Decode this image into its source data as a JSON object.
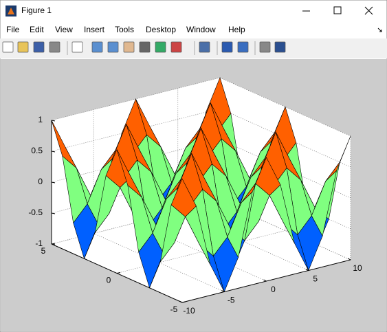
{
  "window": {
    "title": "Figure 1",
    "menu": [
      "File",
      "Edit",
      "View",
      "Insert",
      "Tools",
      "Desktop",
      "Window",
      "Help"
    ]
  },
  "chart_data": {
    "type": "surface",
    "colormap": "jet",
    "grid": true,
    "x": [
      -10,
      -8.333,
      -6.667,
      -5,
      -3.333,
      -1.667,
      0,
      1.667,
      3.333,
      5,
      6.667,
      8.333,
      10
    ],
    "y": [
      -5,
      -4.167,
      -3.333,
      -2.5,
      -1.667,
      -0.833,
      0,
      0.833,
      1.667,
      2.5,
      3.333,
      4.167,
      5
    ],
    "z": [
      [
        1,
        0.5,
        -0.5,
        -1,
        -0.5,
        0.5,
        1,
        0.5,
        -0.5,
        -1,
        -0.5,
        0.5,
        1
      ],
      [
        0.5,
        0.25,
        -0.25,
        -0.5,
        -0.25,
        0.25,
        0.5,
        0.25,
        -0.25,
        -0.5,
        -0.25,
        0.25,
        0.5
      ],
      [
        -0.5,
        -0.25,
        0.25,
        0.5,
        0.25,
        -0.25,
        -0.5,
        -0.25,
        0.25,
        0.5,
        0.25,
        -0.25,
        -0.5
      ],
      [
        -1,
        -0.5,
        0.5,
        1,
        0.5,
        -0.5,
        -1,
        -0.5,
        0.5,
        1,
        0.5,
        -0.5,
        -1
      ],
      [
        -0.5,
        -0.25,
        0.25,
        0.5,
        0.25,
        -0.25,
        -0.5,
        -0.25,
        0.25,
        0.5,
        0.25,
        -0.25,
        -0.5
      ],
      [
        0.5,
        0.25,
        -0.25,
        -0.5,
        -0.25,
        0.25,
        0.5,
        0.25,
        -0.25,
        -0.5,
        -0.25,
        0.25,
        0.5
      ],
      [
        1,
        0.5,
        -0.5,
        -1,
        -0.5,
        0.5,
        1,
        0.5,
        -0.5,
        -1,
        -0.5,
        0.5,
        1
      ],
      [
        0.5,
        0.25,
        -0.25,
        -0.5,
        -0.25,
        0.25,
        0.5,
        0.25,
        -0.25,
        -0.5,
        -0.25,
        0.25,
        0.5
      ],
      [
        -0.5,
        -0.25,
        0.25,
        0.5,
        0.25,
        -0.25,
        -0.5,
        -0.25,
        0.25,
        0.5,
        0.25,
        -0.25,
        -0.5
      ],
      [
        -1,
        -0.5,
        0.5,
        1,
        0.5,
        -0.5,
        -1,
        -0.5,
        0.5,
        1,
        0.5,
        -0.5,
        -1
      ],
      [
        -0.5,
        -0.25,
        0.25,
        0.5,
        0.25,
        -0.25,
        -0.5,
        -0.25,
        0.25,
        0.5,
        0.25,
        -0.25,
        -0.5
      ],
      [
        0.5,
        0.25,
        -0.25,
        -0.5,
        -0.25,
        0.25,
        0.5,
        0.25,
        -0.25,
        -0.5,
        -0.25,
        0.25,
        0.5
      ],
      [
        1,
        0.5,
        -0.5,
        -1,
        -0.5,
        0.5,
        1,
        0.5,
        -0.5,
        -1,
        -0.5,
        0.5,
        1
      ]
    ],
    "xlim": [
      -10,
      10
    ],
    "ylim": [
      -5,
      5
    ],
    "zlim": [
      -1,
      1
    ],
    "xticks": [
      -10,
      -5,
      0,
      5,
      10
    ],
    "yticks": [
      -5,
      0,
      5
    ],
    "zticks": [
      -1,
      -0.5,
      0,
      0.5,
      1
    ]
  }
}
